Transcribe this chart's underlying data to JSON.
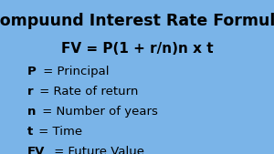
{
  "background_color": "#7ab4e8",
  "title": "Compuund Interest Rate Formula",
  "formula": "FV = P(1 + r/n)n x t",
  "items": [
    {
      "bold": "P",
      "rest": " = Principal"
    },
    {
      "bold": "r",
      "rest": " = Rate of return"
    },
    {
      "bold": "n",
      "rest": " = Number of years"
    },
    {
      "bold": "t",
      "rest": " = Time"
    },
    {
      "bold": "FV",
      "rest": " = Future Value"
    }
  ],
  "title_fontsize": 12.5,
  "formula_fontsize": 11.0,
  "item_fontsize": 9.5,
  "title_color": "#000000",
  "text_color": "#000000",
  "figsize": [
    3.0,
    1.69
  ],
  "dpi": 100
}
